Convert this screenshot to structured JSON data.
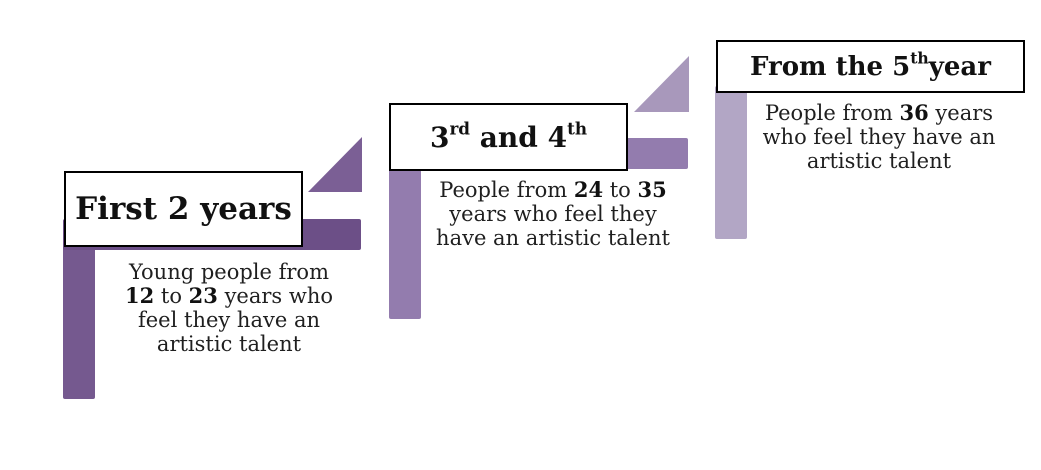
{
  "colors": {
    "stage1": "#75598f",
    "stage1_top": "#6c4f87",
    "stage2": "#937cae",
    "stage3": "#b2a6c5",
    "stage3_tri": "#a898bb"
  },
  "stages": [
    {
      "title_main": "First 2 years",
      "desc": {
        "line1": "Young people from",
        "l2_a": "12",
        "l2_b": " to ",
        "l2_c": "23",
        "l2_d": " years who",
        "line3": "feel they have an",
        "line4": "artistic talent"
      }
    },
    {
      "title_a": "3",
      "title_a_sup": "rd",
      "title_b": " and 4",
      "title_b_sup": "th",
      "desc": {
        "l1_a": "People from ",
        "l1_b": "24",
        "l1_c": " to ",
        "l1_d": "35",
        "line2": "years who feel they",
        "line3": "have an artistic talent"
      }
    },
    {
      "title_a": "From the 5",
      "title_a_sup": "th",
      "title_b": "year",
      "desc": {
        "l1_a": "People from ",
        "l1_b": "36",
        "l1_c": " years",
        "line2": "who feel they have an",
        "line3": "artistic talent"
      }
    }
  ]
}
